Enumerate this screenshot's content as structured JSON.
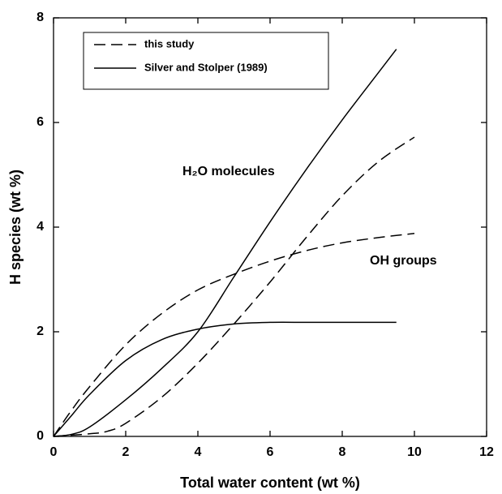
{
  "chart_data": {
    "type": "line",
    "xlabel": "Total water content (wt %)",
    "ylabel": "H species (wt %)",
    "annotations": [
      "H₂O molecules",
      "OH groups"
    ],
    "xlim": [
      0,
      12
    ],
    "xticks": [
      0,
      2,
      4,
      6,
      8,
      10,
      12
    ],
    "ylim": [
      0,
      8
    ],
    "yticks": [
      0,
      2,
      4,
      6,
      8
    ],
    "color": "#000000",
    "series": [
      {
        "name": "this study",
        "dash": "dashed",
        "lines": [
          {
            "x": [
              0,
              1,
              1.5,
              2,
              3,
              4,
              5,
              6,
              7,
              8,
              9,
              10
            ],
            "values": [
              0,
              0.05,
              0.1,
              0.25,
              0.75,
              1.4,
              2.15,
              2.95,
              3.8,
              4.6,
              5.25,
              5.72
            ]
          },
          {
            "x": [
              0,
              0.5,
              1,
              2,
              3,
              4,
              5,
              6,
              7,
              8,
              9,
              10
            ],
            "values": [
              0,
              0.5,
              0.95,
              1.75,
              2.35,
              2.8,
              3.1,
              3.35,
              3.55,
              3.7,
              3.8,
              3.88
            ]
          }
        ]
      },
      {
        "name": "Silver and Stolper (1989)",
        "dash": "solid",
        "lines": [
          {
            "x": [
              0,
              0.5,
              1,
              2,
              3,
              4,
              5,
              6,
              7,
              8,
              9,
              9.5
            ],
            "values": [
              0,
              0.04,
              0.18,
              0.7,
              1.3,
              2.0,
              3.05,
              4.1,
              5.1,
              6.05,
              6.95,
              7.4
            ]
          },
          {
            "x": [
              0,
              0.5,
              1,
              2,
              3,
              4,
              5,
              6,
              7,
              8,
              9.5
            ],
            "values": [
              0,
              0.4,
              0.8,
              1.45,
              1.85,
              2.05,
              2.15,
              2.18,
              2.18,
              2.18,
              2.18
            ]
          }
        ]
      }
    ]
  }
}
